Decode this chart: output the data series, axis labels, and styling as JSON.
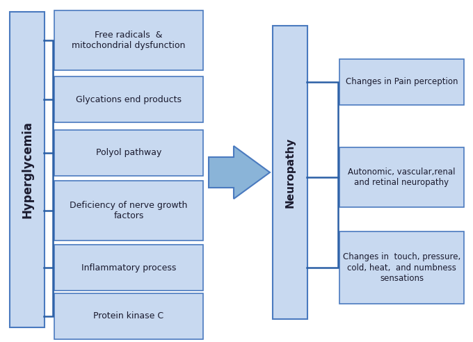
{
  "background_color": "#ffffff",
  "box_fill": "#c8d9f0",
  "box_edge": "#4a7abf",
  "tall_box_fill": "#c8d9f0",
  "tall_box_edge": "#4a7abf",
  "arrow_fill": "#8ab4d8",
  "arrow_edge": "#4a7abf",
  "bracket_color": "#2a5fa5",
  "text_color": "#1a1a2e",
  "left_label": "Hyperglycemia",
  "middle_label": "Neuropathy",
  "left_boxes": [
    "Free radicals  &\nmitochondrial dysfunction",
    "Glycations end products",
    "Polyol pathway",
    "Deficiency of nerve growth\nfactors",
    "Inflammatory process",
    "Protein kinase C"
  ],
  "right_boxes": [
    "Changes in Pain perception",
    "Autonomic, vascular,renal\nand retinal neuropathy",
    "Changes in  touch, pressure,\ncold, heat,  and numbness\nsensations"
  ],
  "figsize": [
    6.8,
    4.92
  ],
  "dpi": 100
}
